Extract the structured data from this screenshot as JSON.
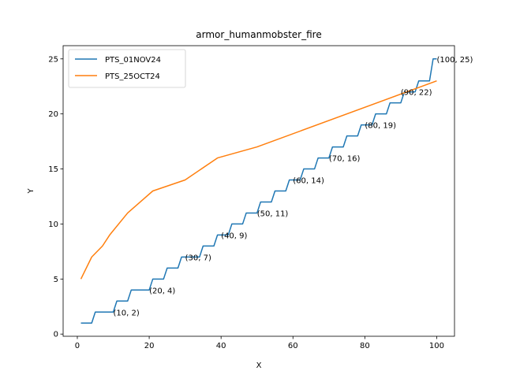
{
  "chart_data": {
    "type": "line",
    "title": "armor_humanmobster_fire",
    "xlabel": "X",
    "ylabel": "Y",
    "xlim": [
      -3.95,
      104.95
    ],
    "ylim": [
      -0.2,
      26.2
    ],
    "xticks": [
      0,
      20,
      40,
      60,
      80,
      100
    ],
    "yticks": [
      0,
      5,
      10,
      15,
      20,
      25
    ],
    "grid": false,
    "legend_position": "top-left",
    "series": [
      {
        "name": "PTS_01NOV24",
        "color": "#1f77b4",
        "x": [
          1,
          2,
          3,
          4,
          5,
          6,
          7,
          8,
          9,
          10,
          11,
          12,
          13,
          14,
          15,
          16,
          17,
          18,
          19,
          20,
          21,
          22,
          23,
          24,
          25,
          26,
          27,
          28,
          29,
          30,
          31,
          32,
          33,
          34,
          35,
          36,
          37,
          38,
          39,
          40,
          41,
          42,
          43,
          44,
          45,
          46,
          47,
          48,
          49,
          50,
          51,
          52,
          53,
          54,
          55,
          56,
          57,
          58,
          59,
          60,
          61,
          62,
          63,
          64,
          65,
          66,
          67,
          68,
          69,
          70,
          71,
          72,
          73,
          74,
          75,
          76,
          77,
          78,
          79,
          80,
          81,
          82,
          83,
          84,
          85,
          86,
          87,
          88,
          89,
          90,
          91,
          92,
          93,
          94,
          95,
          96,
          97,
          98,
          99,
          100
        ],
        "y": [
          1,
          1,
          1,
          1,
          2,
          2,
          2,
          2,
          2,
          2,
          3,
          3,
          3,
          3,
          4,
          4,
          4,
          4,
          4,
          4,
          5,
          5,
          5,
          5,
          6,
          6,
          6,
          6,
          7,
          7,
          7,
          7,
          7,
          7,
          8,
          8,
          8,
          8,
          9,
          9,
          9,
          9,
          10,
          10,
          10,
          10,
          11,
          11,
          11,
          11,
          12,
          12,
          12,
          12,
          13,
          13,
          13,
          13,
          14,
          14,
          14,
          14,
          15,
          15,
          15,
          15,
          16,
          16,
          16,
          16,
          17,
          17,
          17,
          17,
          18,
          18,
          18,
          18,
          19,
          19,
          19,
          19,
          20,
          20,
          20,
          20,
          21,
          21,
          21,
          21,
          22,
          22,
          22,
          22,
          23,
          23,
          23,
          23,
          25,
          25
        ]
      },
      {
        "name": "PTS_25OCT24",
        "color": "#ff7f0e",
        "x": [
          1,
          4,
          7,
          9,
          14,
          21,
          30,
          39,
          50,
          100
        ],
        "y": [
          5,
          7,
          8,
          9,
          11,
          13,
          14,
          16,
          17,
          23
        ]
      }
    ],
    "annotations": [
      {
        "x": 10,
        "y": 2,
        "text": "(10, 2)"
      },
      {
        "x": 20,
        "y": 4,
        "text": "(20, 4)"
      },
      {
        "x": 30,
        "y": 7,
        "text": "(30, 7)"
      },
      {
        "x": 40,
        "y": 9,
        "text": "(40, 9)"
      },
      {
        "x": 50,
        "y": 11,
        "text": "(50, 11)"
      },
      {
        "x": 60,
        "y": 14,
        "text": "(60, 14)"
      },
      {
        "x": 70,
        "y": 16,
        "text": "(70, 16)"
      },
      {
        "x": 80,
        "y": 19,
        "text": "(80, 19)"
      },
      {
        "x": 90,
        "y": 22,
        "text": "(90, 22)"
      },
      {
        "x": 100,
        "y": 25,
        "text": "(100, 25)"
      }
    ]
  }
}
